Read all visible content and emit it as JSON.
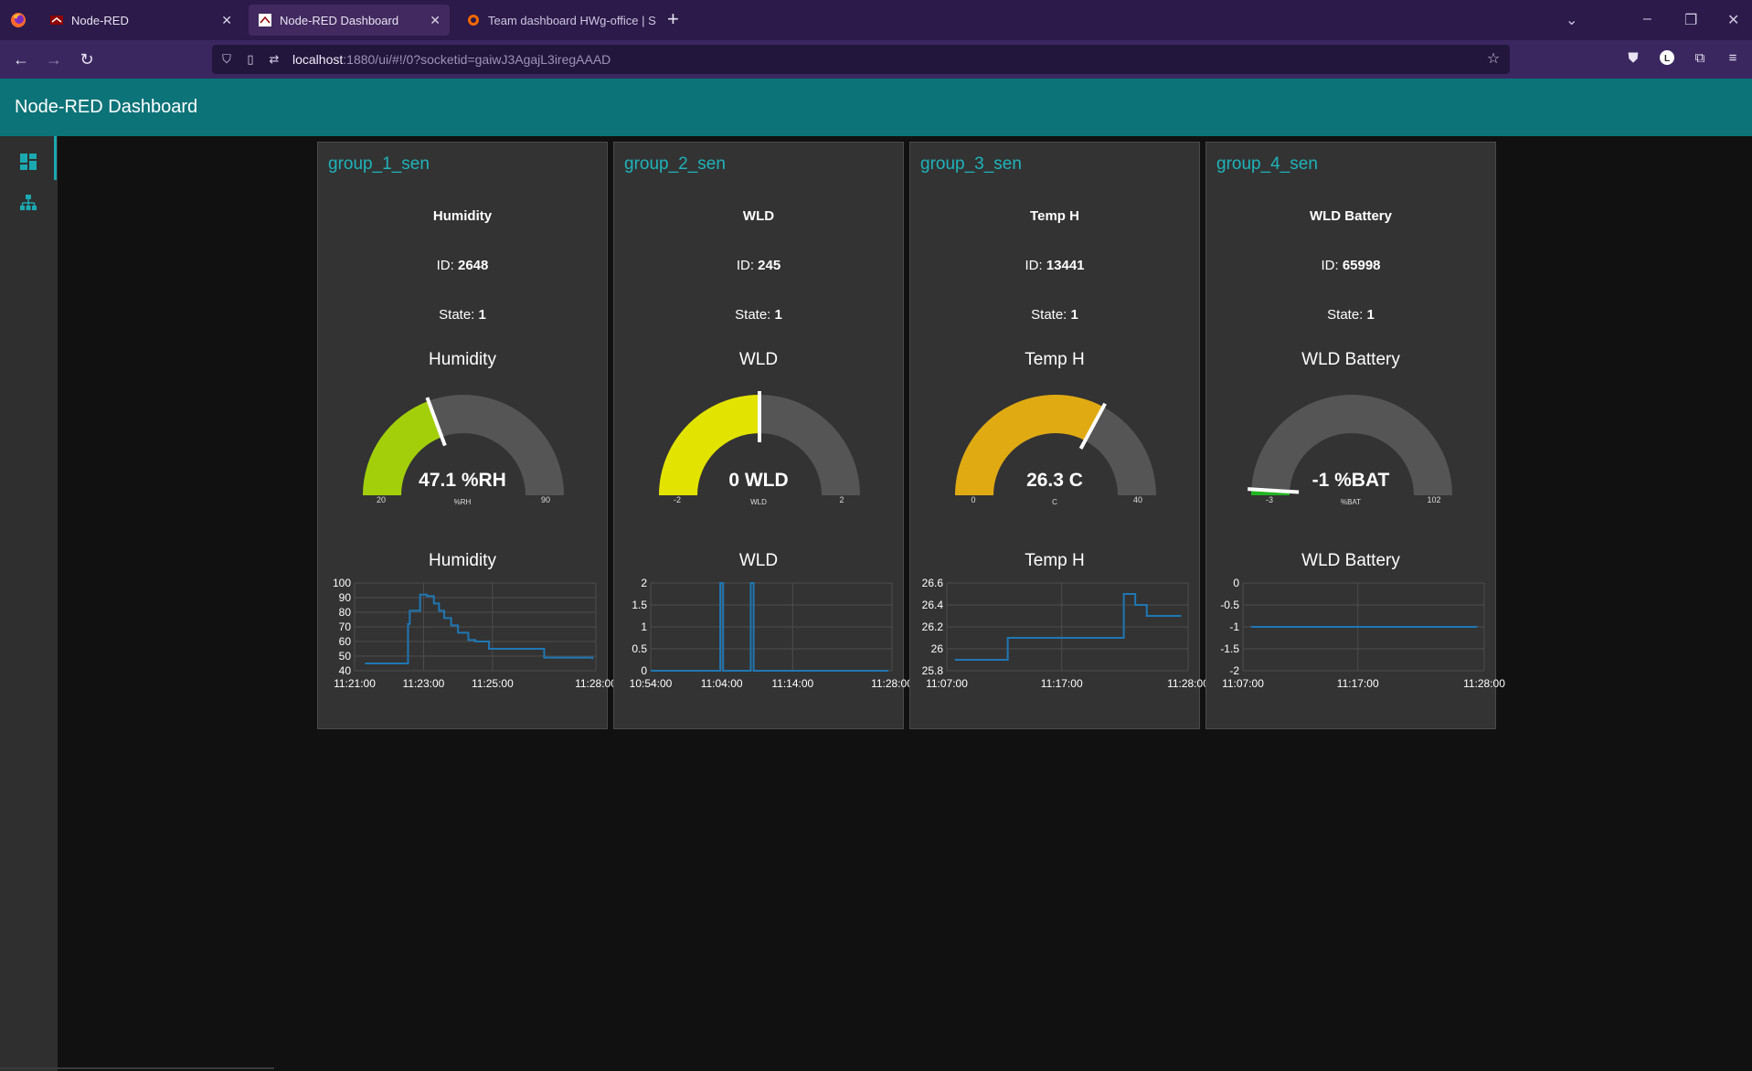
{
  "browser": {
    "tabs": [
      {
        "title": "Node-RED",
        "active": false
      },
      {
        "title": "Node-RED Dashboard",
        "active": true
      },
      {
        "title": "Team dashboard HWg-office | S",
        "active": false
      }
    ],
    "url_host": "localhost",
    "url_rest": ":1880/ui/#!/0?socketid=gaiwJ3AgajL3iregAAAD"
  },
  "dashboard": {
    "title": "Node-RED Dashboard",
    "accent": "#0c7378"
  },
  "groups": [
    {
      "title": "group_1_sen",
      "name": "Humidity",
      "id_label": "ID: ",
      "id_value": "2648",
      "state_label": "State: ",
      "state_value": "1",
      "gauge": {
        "title": "Humidity",
        "value": 47.1,
        "value_text": "47.1 %RH",
        "unit": "%RH",
        "min": 20,
        "max": 90,
        "min_text": "20",
        "max_text": "90",
        "color": "#a3cf0a"
      },
      "chart_title": "Humidity"
    },
    {
      "title": "group_2_sen",
      "name": "WLD",
      "id_label": "ID: ",
      "id_value": "245",
      "state_label": "State: ",
      "state_value": "1",
      "gauge": {
        "title": "WLD",
        "value": 0,
        "value_text": "0 WLD",
        "unit": "WLD",
        "min": -2,
        "max": 2,
        "min_text": "-2",
        "max_text": "2",
        "color": "#e3e300"
      },
      "chart_title": "WLD"
    },
    {
      "title": "group_3_sen",
      "name": "Temp H",
      "id_label": "ID: ",
      "id_value": "13441",
      "state_label": "State: ",
      "state_value": "1",
      "gauge": {
        "title": "Temp H",
        "value": 26.3,
        "value_text": "26.3 C",
        "unit": "C",
        "min": 0,
        "max": 40,
        "min_text": "0",
        "max_text": "40",
        "color": "#e0aa12"
      },
      "chart_title": "Temp H"
    },
    {
      "title": "group_4_sen",
      "name": "WLD Battery",
      "id_label": "ID: ",
      "id_value": "65998",
      "state_label": "State: ",
      "state_value": "1",
      "gauge": {
        "title": "WLD Battery",
        "value": -1,
        "value_text": "-1 %BAT",
        "unit": "%BAT",
        "min": -3,
        "max": 102,
        "min_text": "-3",
        "max_text": "102",
        "color": "#22b422"
      },
      "chart_title": "WLD Battery"
    }
  ],
  "chart_data": [
    {
      "type": "line",
      "title": "Humidity",
      "ylim": [
        40,
        100
      ],
      "yticks": [
        "100",
        "90",
        "80",
        "70",
        "60",
        "50",
        "40"
      ],
      "ytick_values": [
        100,
        90,
        80,
        70,
        60,
        50,
        40
      ],
      "xlim": [
        0,
        7
      ],
      "xticks": [
        "11:21:00",
        "11:23:00",
        "11:25:00",
        "11:28:00"
      ],
      "xtick_values": [
        0,
        2,
        4,
        7
      ],
      "series": [
        {
          "color": "#1f77b4",
          "step": true,
          "x": [
            0.3,
            1.4,
            1.55,
            1.6,
            1.65,
            1.9,
            2.1,
            2.3,
            2.45,
            2.6,
            2.8,
            3.0,
            3.3,
            3.5,
            3.9,
            4.0,
            4.2,
            4.4,
            5.5,
            6.5,
            6.6,
            6.9
          ],
          "y": [
            45,
            45,
            72,
            81,
            81,
            92,
            91,
            86,
            81,
            76,
            71,
            66,
            61,
            60,
            55,
            55,
            55,
            55,
            49,
            49,
            49,
            48
          ]
        }
      ]
    },
    {
      "type": "line",
      "title": "WLD",
      "ylim": [
        0,
        2
      ],
      "yticks": [
        "2",
        "1.5",
        "1",
        "0.5",
        "0"
      ],
      "ytick_values": [
        2,
        1.5,
        1,
        0.5,
        0
      ],
      "xlim": [
        0,
        34
      ],
      "xticks": [
        "10:54:00",
        "11:04:00",
        "11:14:00",
        "11:28:00"
      ],
      "xtick_values": [
        0,
        10,
        20,
        34
      ],
      "series": [
        {
          "color": "#1f77b4",
          "step": true,
          "x": [
            0,
            9.8,
            10.2,
            14.1,
            14.5,
            33.5
          ],
          "y": [
            0,
            2,
            0,
            2,
            0,
            0
          ]
        }
      ]
    },
    {
      "type": "line",
      "title": "Temp H",
      "ylim": [
        25.8,
        26.6
      ],
      "yticks": [
        "26.6",
        "26.4",
        "26.2",
        "26",
        "25.8"
      ],
      "ytick_values": [
        26.6,
        26.4,
        26.2,
        26,
        25.8
      ],
      "xlim": [
        0,
        21
      ],
      "xticks": [
        "11:07:00",
        "11:17:00",
        "11:28:00"
      ],
      "xtick_values": [
        0,
        10,
        21
      ],
      "series": [
        {
          "color": "#1f77b4",
          "step": true,
          "x": [
            0.7,
            5.3,
            15.4,
            16.4,
            17.4,
            20.4
          ],
          "y": [
            25.9,
            26.1,
            26.5,
            26.4,
            26.3,
            26.3
          ]
        }
      ]
    },
    {
      "type": "line",
      "title": "WLD Battery",
      "ylim": [
        -2,
        0
      ],
      "yticks": [
        "0",
        "-0.5",
        "-1",
        "-1.5",
        "-2"
      ],
      "ytick_values": [
        0,
        -0.5,
        -1,
        -1.5,
        -2
      ],
      "xlim": [
        0,
        21
      ],
      "xticks": [
        "11:07:00",
        "11:17:00",
        "11:28:00"
      ],
      "xtick_values": [
        0,
        10,
        21
      ],
      "series": [
        {
          "color": "#1f77b4",
          "step": false,
          "x": [
            0.7,
            20.4
          ],
          "y": [
            -1,
            -1
          ]
        }
      ]
    }
  ]
}
